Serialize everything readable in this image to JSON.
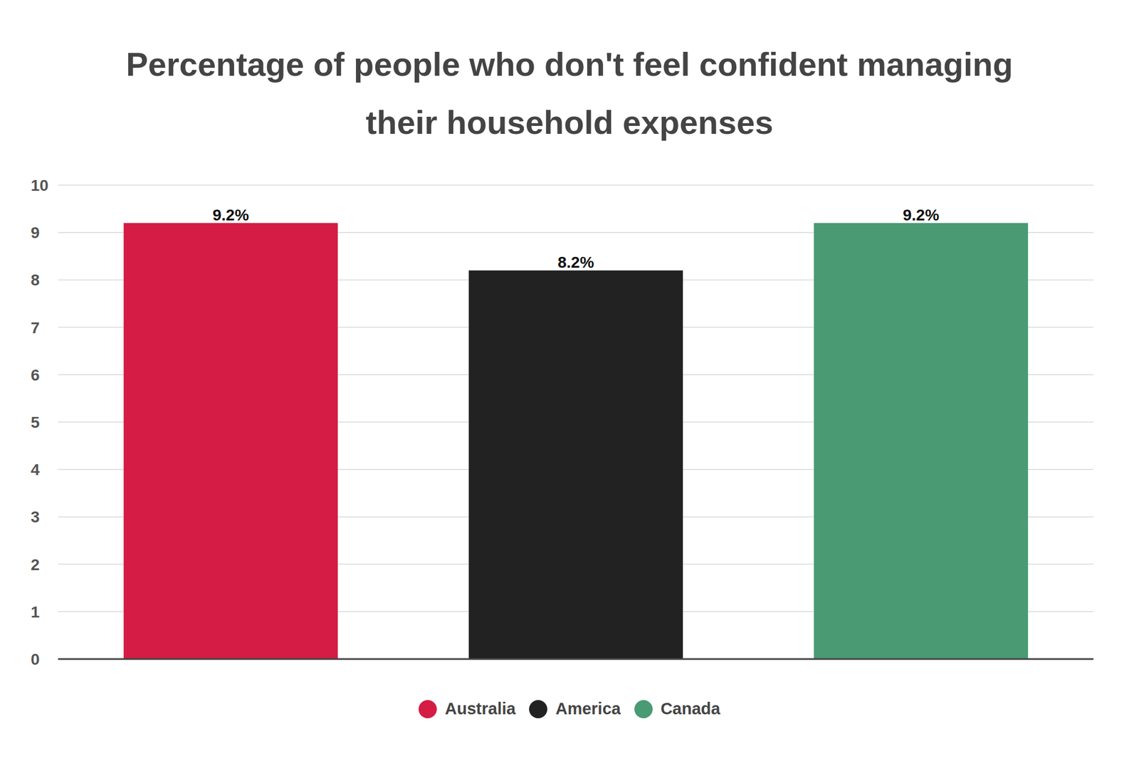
{
  "chart_data": {
    "type": "bar",
    "title": "Percentage of people who don't feel confident managing their household expenses",
    "categories": [
      "Australia",
      "America",
      "Canada"
    ],
    "values": [
      9.2,
      8.2,
      9.2
    ],
    "value_labels": [
      "9.2%",
      "8.2%",
      "9.2%"
    ],
    "colors": [
      "#d41c44",
      "#222222",
      "#4a9a74"
    ],
    "ylim": [
      0,
      10
    ],
    "yticks": [
      0,
      1,
      2,
      3,
      4,
      5,
      6,
      7,
      8,
      9,
      10
    ],
    "grid": true,
    "data_labels": true,
    "tick_labels": "y",
    "legend": "bottom"
  }
}
